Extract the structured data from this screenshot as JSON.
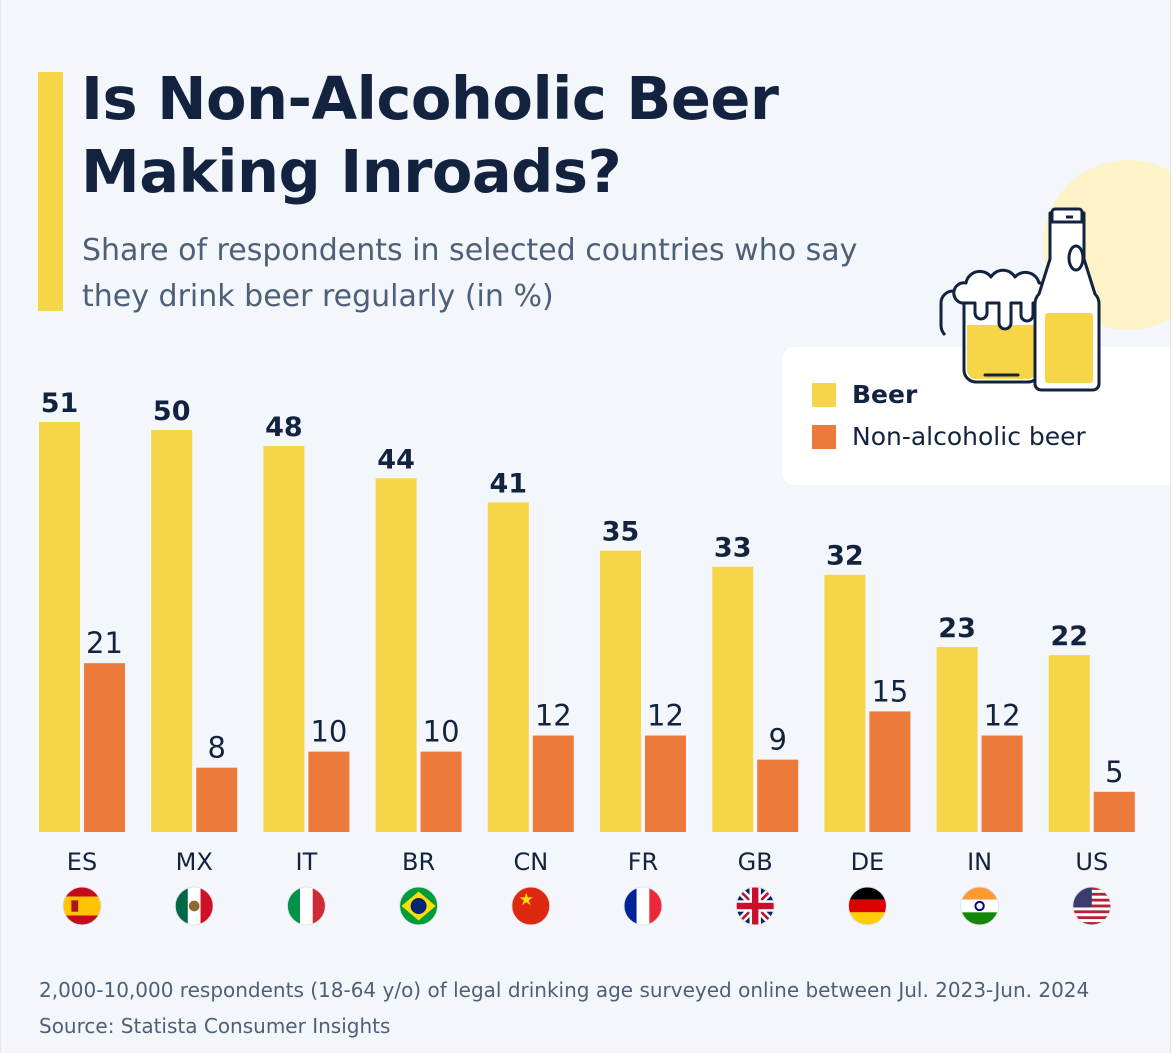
{
  "title": "Is Non-Alcoholic Beer Making Inroads?",
  "subtitle": "Share of respondents in selected countries who say they drink beer regularly (in %)",
  "legend": {
    "items": [
      {
        "label": "Beer",
        "color": "#f7d548"
      },
      {
        "label": "Non-alcoholic beer",
        "color": "#ec7a3a"
      }
    ]
  },
  "icons": {
    "illustration": "beer-mug-and-bottle-icon"
  },
  "countries": [
    {
      "code": "ES",
      "flag": "spain-flag"
    },
    {
      "code": "MX",
      "flag": "mexico-flag"
    },
    {
      "code": "IT",
      "flag": "italy-flag"
    },
    {
      "code": "BR",
      "flag": "brazil-flag"
    },
    {
      "code": "CN",
      "flag": "china-flag"
    },
    {
      "code": "FR",
      "flag": "france-flag"
    },
    {
      "code": "GB",
      "flag": "uk-flag"
    },
    {
      "code": "DE",
      "flag": "germany-flag"
    },
    {
      "code": "IN",
      "flag": "india-flag"
    },
    {
      "code": "US",
      "flag": "usa-flag"
    }
  ],
  "footnote": "2,000-10,000 respondents (18-64 y/o) of legal drinking age surveyed online between Jul. 2023-Jun. 2024",
  "source": "Source: Statista Consumer Insights",
  "colors": {
    "beer": "#f7d548",
    "non_alcoholic": "#ec7a3a",
    "text_dark": "#13233f",
    "text_muted": "#4e5f78",
    "background": "#f3f6fa"
  },
  "chart_data": {
    "type": "bar",
    "title": "Is Non-Alcoholic Beer Making Inroads?",
    "subtitle": "Share of respondents in selected countries who say they drink beer regularly (in %)",
    "xlabel": "",
    "ylabel": "",
    "categories": [
      "ES",
      "MX",
      "IT",
      "BR",
      "CN",
      "FR",
      "GB",
      "DE",
      "IN",
      "US"
    ],
    "series": [
      {
        "name": "Beer",
        "values": [
          51,
          50,
          48,
          44,
          41,
          35,
          33,
          32,
          23,
          22
        ]
      },
      {
        "name": "Non-alcoholic beer",
        "values": [
          21,
          8,
          10,
          10,
          12,
          12,
          9,
          15,
          12,
          5
        ]
      }
    ],
    "ylim": [
      0,
      51
    ],
    "grid": false,
    "y_axis_visible": false,
    "data_labels": true,
    "legend_position": "top-right"
  }
}
